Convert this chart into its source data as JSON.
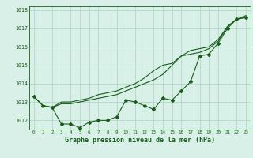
{
  "title": "Graphe pression niveau de la mer (hPa)",
  "background_color": "#d8f0e8",
  "grid_color": "#aad4c0",
  "line_color": "#1a5c1a",
  "xlim": [
    -0.5,
    23.5
  ],
  "ylim": [
    1011.5,
    1018.2
  ],
  "yticks": [
    1012,
    1013,
    1014,
    1015,
    1016,
    1017,
    1018
  ],
  "xticks": [
    0,
    1,
    2,
    3,
    4,
    5,
    6,
    7,
    8,
    9,
    10,
    11,
    12,
    13,
    14,
    15,
    16,
    17,
    18,
    19,
    20,
    21,
    22,
    23
  ],
  "series1": [
    1013.3,
    1012.8,
    1012.7,
    1011.8,
    1011.8,
    1011.6,
    1011.9,
    1012.0,
    1012.0,
    1012.2,
    1013.1,
    1013.0,
    1012.8,
    1012.6,
    1013.2,
    1013.1,
    1013.6,
    1014.1,
    1015.5,
    1015.6,
    1016.2,
    1017.0,
    1017.5,
    1017.6
  ],
  "series2": [
    1013.3,
    1012.8,
    1012.7,
    1012.9,
    1012.9,
    1013.0,
    1013.1,
    1013.2,
    1013.3,
    1013.4,
    1013.6,
    1013.8,
    1014.0,
    1014.2,
    1014.5,
    1015.0,
    1015.5,
    1015.8,
    1015.9,
    1016.0,
    1016.4,
    1017.1,
    1017.5,
    1017.6
  ],
  "series3": [
    1013.3,
    1012.8,
    1012.7,
    1013.0,
    1013.0,
    1013.1,
    1013.2,
    1013.4,
    1013.5,
    1013.6,
    1013.8,
    1014.0,
    1014.3,
    1014.7,
    1015.0,
    1015.1,
    1015.5,
    1015.6,
    1015.7,
    1015.9,
    1016.3,
    1017.1,
    1017.5,
    1017.7
  ]
}
